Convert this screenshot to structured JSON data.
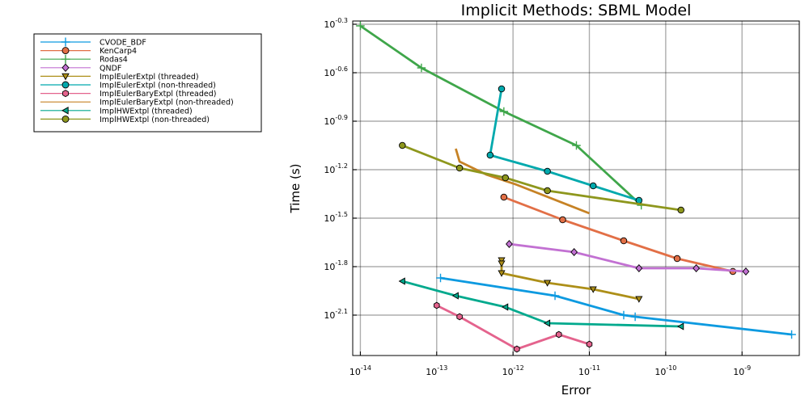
{
  "chart_data": {
    "type": "line",
    "title": "Implicit Methods: SBML Model",
    "xlabel": "Error",
    "ylabel": "Time (s)",
    "xscale": "log10",
    "yscale": "log10",
    "xlim_log10": [
      -14.1,
      -8.25
    ],
    "ylim_log10": [
      -2.35,
      -0.28
    ],
    "x_ticks_log10": [
      -14,
      -13,
      -12,
      -11,
      -10,
      -9
    ],
    "y_ticks_log10": [
      -0.3,
      -0.6,
      -0.9,
      -1.2,
      -1.5,
      -1.8,
      -2.1
    ],
    "grid": true,
    "legend_position": "outside-left",
    "series": [
      {
        "name": "CVODE_BDF",
        "color": "#0d9ae0",
        "marker": "plus",
        "x_log10": [
          -12.95,
          -11.45,
          -10.55,
          -10.4,
          -8.35
        ],
        "y_log10": [
          -1.87,
          -1.98,
          -2.1,
          -2.11,
          -2.22
        ]
      },
      {
        "name": "KenCarp4",
        "color": "#e26f46",
        "marker": "circle",
        "x_log10": [
          -12.12,
          -11.35,
          -10.55,
          -9.85,
          -9.12
        ],
        "y_log10": [
          -1.37,
          -1.51,
          -1.64,
          -1.75,
          -1.83
        ]
      },
      {
        "name": "Rodas4",
        "color": "#3fa64a",
        "marker": "plus",
        "x_log10": [
          -14.0,
          -13.2,
          -12.12,
          -11.17,
          -10.32
        ],
        "y_log10": [
          -0.31,
          -0.57,
          -0.84,
          -1.05,
          -1.42
        ]
      },
      {
        "name": "QNDF",
        "color": "#c271d2",
        "marker": "diamond",
        "x_log10": [
          -12.05,
          -11.2,
          -10.35,
          -9.6,
          -8.95
        ],
        "y_log10": [
          -1.66,
          -1.71,
          -1.81,
          -1.81,
          -1.83
        ]
      },
      {
        "name": "ImplEulerExtpl (threaded)",
        "color": "#ad8f18",
        "marker": "triangle-down",
        "x_log10": [
          -12.15,
          -12.15,
          -12.15,
          -11.55,
          -10.95,
          -10.35
        ],
        "y_log10": [
          -1.76,
          -1.78,
          -1.84,
          -1.9,
          -1.94,
          -2.0
        ]
      },
      {
        "name": "ImplEulerExtpl (non-threaded)",
        "color": "#00a9ad",
        "marker": "circle",
        "x_log10": [
          -12.15,
          -12.3,
          -11.55,
          -10.95,
          -10.35
        ],
        "y_log10": [
          -0.7,
          -1.11,
          -1.21,
          -1.3,
          -1.39
        ]
      },
      {
        "name": "ImplEulerBaryExtpl (threaded)",
        "color": "#e4638d",
        "marker": "hexagon",
        "x_log10": [
          -13.0,
          -12.7,
          -11.95,
          -11.4,
          -11.0
        ],
        "y_log10": [
          -2.04,
          -2.11,
          -2.31,
          -2.22,
          -2.28
        ]
      },
      {
        "name": "ImplEulerBaryExtpl (non-threaded)",
        "color": "#c68225",
        "marker": "none",
        "x_log10": [
          -12.75,
          -12.7,
          -12.35,
          -11.97,
          -11.0
        ],
        "y_log10": [
          -1.07,
          -1.15,
          -1.23,
          -1.29,
          -1.47
        ]
      },
      {
        "name": "ImplHWExtpl (threaded)",
        "color": "#00a98d",
        "marker": "triangle-left",
        "x_log10": [
          -13.45,
          -12.75,
          -12.1,
          -11.55,
          -9.8
        ],
        "y_log10": [
          -1.89,
          -1.98,
          -2.05,
          -2.15,
          -2.17
        ]
      },
      {
        "name": "ImplHWExtpl (non-threaded)",
        "color": "#8e971d",
        "marker": "circle",
        "x_log10": [
          -13.45,
          -12.7,
          -12.1,
          -11.55,
          -9.8
        ],
        "y_log10": [
          -1.05,
          -1.19,
          -1.25,
          -1.33,
          -1.45
        ]
      }
    ]
  }
}
